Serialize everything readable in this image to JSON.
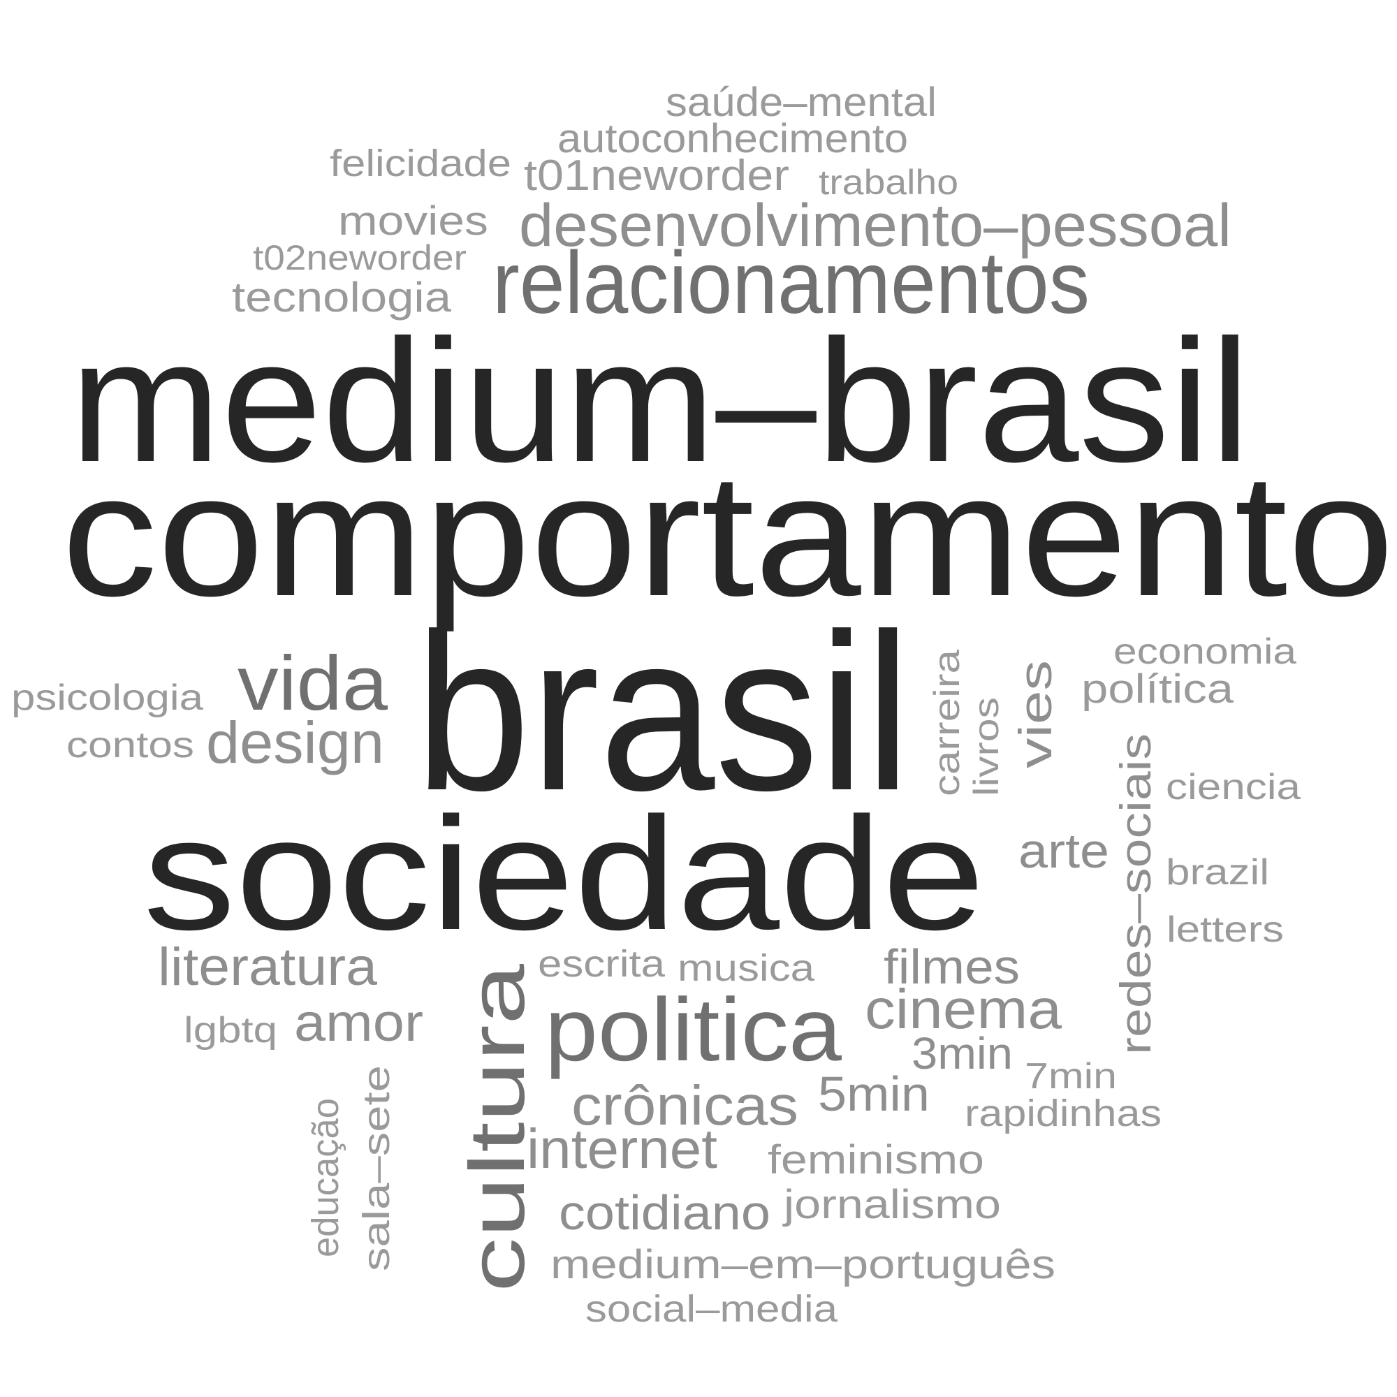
{
  "colors": {
    "background": "#ffffff",
    "tier1": "#262626",
    "tier2": "#707070",
    "tier3": "#8e8e8e",
    "tier4": "#9a9a9a"
  },
  "words": [
    {
      "id": "medium-brasil",
      "text": "medium–brasil",
      "tier": 1
    },
    {
      "id": "comportamento",
      "text": "comportamento",
      "tier": 1
    },
    {
      "id": "brasil",
      "text": "brasil",
      "tier": 1
    },
    {
      "id": "sociedade",
      "text": "sociedade",
      "tier": 1
    },
    {
      "id": "relacionamentos",
      "text": "relacionamentos",
      "tier": 2
    },
    {
      "id": "politica",
      "text": "politica",
      "tier": 2
    },
    {
      "id": "cultura",
      "text": "cultura",
      "tier": 2
    },
    {
      "id": "vida",
      "text": "vida",
      "tier": 2
    },
    {
      "id": "desenvolvimento-pessoal",
      "text": "desenvolvimento–pessoal",
      "tier": 3
    },
    {
      "id": "design",
      "text": "design",
      "tier": 3
    },
    {
      "id": "cinema",
      "text": "cinema",
      "tier": 3
    },
    {
      "id": "cronicas",
      "text": "crônicas",
      "tier": 3
    },
    {
      "id": "internet",
      "text": "internet",
      "tier": 3
    },
    {
      "id": "literatura",
      "text": "literatura",
      "tier": 3
    },
    {
      "id": "amor",
      "text": "amor",
      "tier": 3
    },
    {
      "id": "filmes",
      "text": "filmes",
      "tier": 3
    },
    {
      "id": "arte",
      "text": "arte",
      "tier": 3
    },
    {
      "id": "5min",
      "text": "5min",
      "tier": 3
    },
    {
      "id": "3min",
      "text": "3min",
      "tier": 3
    },
    {
      "id": "cotidiano",
      "text": "cotidiano",
      "tier": 3
    },
    {
      "id": "vies",
      "text": "vies",
      "tier": 3
    },
    {
      "id": "redes-sociais",
      "text": "redes–sociais",
      "tier": 3
    },
    {
      "id": "saude-mental",
      "text": "saúde–mental",
      "tier": 4
    },
    {
      "id": "autoconhecimento",
      "text": "autoconhecimento",
      "tier": 4
    },
    {
      "id": "felicidade",
      "text": "felicidade",
      "tier": 4
    },
    {
      "id": "t01neworder",
      "text": "t01neworder",
      "tier": 4
    },
    {
      "id": "trabalho",
      "text": "trabalho",
      "tier": 4
    },
    {
      "id": "movies",
      "text": "movies",
      "tier": 4
    },
    {
      "id": "t02neworder",
      "text": "t02neworder",
      "tier": 4
    },
    {
      "id": "tecnologia",
      "text": "tecnologia",
      "tier": 4
    },
    {
      "id": "psicologia",
      "text": "psicologia",
      "tier": 4
    },
    {
      "id": "contos",
      "text": "contos",
      "tier": 4
    },
    {
      "id": "economia",
      "text": "economia",
      "tier": 4
    },
    {
      "id": "politica-acento",
      "text": "política",
      "tier": 4
    },
    {
      "id": "ciencia",
      "text": "ciencia",
      "tier": 4
    },
    {
      "id": "brazil",
      "text": "brazil",
      "tier": 4
    },
    {
      "id": "letters",
      "text": "letters",
      "tier": 4
    },
    {
      "id": "escrita",
      "text": "escrita",
      "tier": 4
    },
    {
      "id": "musica",
      "text": "musica",
      "tier": 4
    },
    {
      "id": "lgbtq",
      "text": "lgbtq",
      "tier": 4
    },
    {
      "id": "7min",
      "text": "7min",
      "tier": 4
    },
    {
      "id": "rapidinhas",
      "text": "rapidinhas",
      "tier": 4
    },
    {
      "id": "feminismo",
      "text": "feminismo",
      "tier": 4
    },
    {
      "id": "jornalismo",
      "text": "jornalismo",
      "tier": 4
    },
    {
      "id": "medium-em-portugues",
      "text": "medium–em–português",
      "tier": 4
    },
    {
      "id": "social-media",
      "text": "social–media",
      "tier": 4
    },
    {
      "id": "carreira",
      "text": "carreira",
      "tier": 4
    },
    {
      "id": "livros",
      "text": "livros",
      "tier": 4
    },
    {
      "id": "educacao",
      "text": "educação",
      "tier": 4
    },
    {
      "id": "sala-sete",
      "text": "sala–sete",
      "tier": 4
    }
  ]
}
